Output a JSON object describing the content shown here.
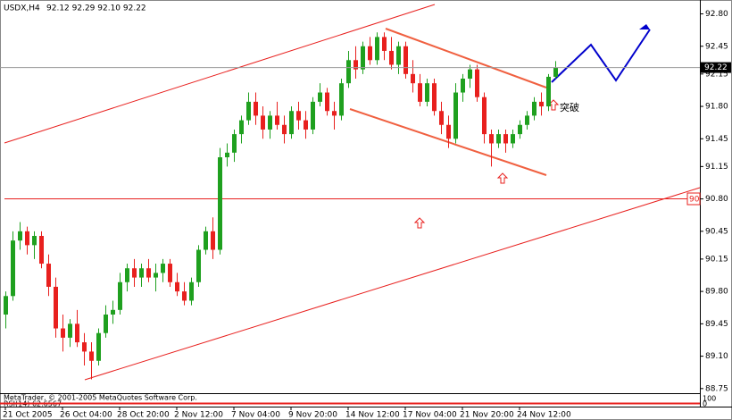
{
  "chart_data": {
    "type": "candlestick",
    "symbol": "USDX,H4",
    "ohlc_text": "92.12 92.29 92.10 92.22",
    "up_color": "#1fa01f",
    "down_color": "#e8201e",
    "ylim": [
      88.7,
      92.95
    ],
    "yticks": [
      {
        "value": 92.8,
        "label": "92.80"
      },
      92.45,
      92.15,
      {
        "value": 91.8,
        "label": "91.80"
      },
      91.45,
      91.15,
      {
        "value": 90.8,
        "label": "90.80"
      },
      90.45,
      90.15,
      {
        "value": 89.8,
        "label": "89.80"
      },
      89.45,
      {
        "value": 89.1,
        "label": "89.10"
      },
      88.75
    ],
    "categories": [
      "21 Oct 2005",
      null,
      null,
      null,
      null,
      null,
      null,
      null,
      "26 Oct 04:00",
      null,
      null,
      null,
      null,
      null,
      null,
      null,
      "28 Oct 20:00",
      null,
      null,
      null,
      null,
      null,
      null,
      null,
      "2 Nov 12:00",
      null,
      null,
      null,
      null,
      null,
      null,
      null,
      "7 Nov 04:00",
      null,
      null,
      null,
      null,
      null,
      null,
      null,
      "9 Nov 20:00",
      null,
      null,
      null,
      null,
      null,
      null,
      null,
      "14 Nov 12:00",
      null,
      null,
      null,
      null,
      null,
      null,
      null,
      "17 Nov 04:00",
      null,
      null,
      null,
      null,
      null,
      null,
      null,
      "21 Nov 20:00",
      null,
      null,
      null,
      null,
      null,
      null,
      null,
      "24 Nov 12:00",
      null,
      null,
      null,
      null,
      null
    ],
    "candles": [
      [
        89.55,
        89.8,
        89.4,
        89.75
      ],
      [
        89.75,
        90.45,
        89.7,
        90.35
      ],
      [
        90.35,
        90.55,
        90.25,
        90.45
      ],
      [
        90.45,
        90.5,
        90.2,
        90.3
      ],
      [
        90.3,
        90.45,
        90.15,
        90.4
      ],
      [
        90.4,
        90.45,
        90.05,
        90.1
      ],
      [
        90.1,
        90.2,
        89.75,
        89.85
      ],
      [
        89.85,
        89.95,
        89.3,
        89.4
      ],
      [
        89.4,
        89.55,
        89.15,
        89.3
      ],
      [
        89.3,
        89.5,
        89.2,
        89.45
      ],
      [
        89.45,
        89.6,
        89.2,
        89.25
      ],
      [
        89.25,
        89.35,
        89.0,
        89.15
      ],
      [
        89.15,
        89.25,
        88.85,
        89.05
      ],
      [
        89.05,
        89.4,
        89.0,
        89.35
      ],
      [
        89.35,
        89.65,
        89.3,
        89.55
      ],
      [
        89.55,
        89.7,
        89.45,
        89.6
      ],
      [
        89.6,
        90.0,
        89.55,
        89.9
      ],
      [
        89.9,
        90.1,
        89.8,
        90.05
      ],
      [
        90.05,
        90.15,
        89.85,
        89.95
      ],
      [
        89.95,
        90.1,
        89.85,
        90.05
      ],
      [
        90.05,
        90.15,
        89.9,
        89.95
      ],
      [
        89.95,
        90.1,
        89.8,
        90.0
      ],
      [
        90.0,
        90.15,
        89.9,
        90.1
      ],
      [
        90.1,
        90.15,
        89.85,
        89.9
      ],
      [
        89.9,
        90.0,
        89.75,
        89.8
      ],
      [
        89.8,
        89.9,
        89.65,
        89.7
      ],
      [
        89.7,
        89.95,
        89.65,
        89.9
      ],
      [
        89.9,
        90.3,
        89.85,
        90.25
      ],
      [
        90.25,
        90.5,
        90.2,
        90.45
      ],
      [
        90.45,
        90.6,
        90.15,
        90.25
      ],
      [
        90.25,
        91.35,
        90.2,
        91.25
      ],
      [
        91.25,
        91.4,
        91.15,
        91.3
      ],
      [
        91.3,
        91.55,
        91.2,
        91.5
      ],
      [
        91.5,
        91.7,
        91.4,
        91.65
      ],
      [
        91.65,
        91.95,
        91.6,
        91.85
      ],
      [
        91.85,
        91.95,
        91.6,
        91.7
      ],
      [
        91.7,
        91.8,
        91.45,
        91.55
      ],
      [
        91.55,
        91.75,
        91.45,
        91.7
      ],
      [
        91.7,
        91.85,
        91.55,
        91.6
      ],
      [
        91.6,
        91.7,
        91.4,
        91.5
      ],
      [
        91.5,
        91.8,
        91.45,
        91.75
      ],
      [
        91.75,
        91.85,
        91.55,
        91.65
      ],
      [
        91.65,
        91.75,
        91.45,
        91.55
      ],
      [
        91.55,
        91.9,
        91.5,
        91.85
      ],
      [
        91.85,
        92.05,
        91.8,
        91.95
      ],
      [
        91.95,
        92.0,
        91.7,
        91.75
      ],
      [
        91.75,
        91.85,
        91.55,
        91.7
      ],
      [
        91.7,
        92.1,
        91.65,
        92.05
      ],
      [
        92.05,
        92.4,
        92.0,
        92.3
      ],
      [
        92.3,
        92.45,
        92.1,
        92.2
      ],
      [
        92.2,
        92.5,
        92.15,
        92.45
      ],
      [
        92.45,
        92.55,
        92.25,
        92.3
      ],
      [
        92.3,
        92.6,
        92.25,
        92.55
      ],
      [
        92.55,
        92.6,
        92.3,
        92.4
      ],
      [
        92.4,
        92.55,
        92.2,
        92.25
      ],
      [
        92.25,
        92.5,
        92.15,
        92.45
      ],
      [
        92.45,
        92.5,
        92.1,
        92.15
      ],
      [
        92.15,
        92.3,
        91.95,
        92.05
      ],
      [
        92.05,
        92.15,
        91.8,
        91.85
      ],
      [
        91.85,
        92.1,
        91.8,
        92.05
      ],
      [
        92.05,
        92.1,
        91.7,
        91.75
      ],
      [
        91.75,
        91.85,
        91.5,
        91.6
      ],
      [
        91.6,
        91.7,
        91.35,
        91.45
      ],
      [
        91.45,
        92.05,
        91.4,
        91.95
      ],
      [
        91.95,
        92.15,
        91.85,
        92.1
      ],
      [
        92.1,
        92.25,
        92.0,
        92.2
      ],
      [
        92.2,
        92.25,
        91.85,
        91.9
      ],
      [
        91.9,
        91.95,
        91.4,
        91.5
      ],
      [
        91.5,
        91.55,
        91.15,
        91.4
      ],
      [
        91.4,
        91.55,
        91.35,
        91.5
      ],
      [
        91.5,
        91.55,
        91.3,
        91.4
      ],
      [
        91.4,
        91.55,
        91.35,
        91.5
      ],
      [
        91.5,
        91.65,
        91.45,
        91.6
      ],
      [
        91.6,
        91.75,
        91.55,
        91.7
      ],
      [
        91.7,
        91.9,
        91.65,
        91.85
      ],
      [
        91.85,
        91.95,
        91.7,
        91.8
      ],
      [
        91.8,
        92.15,
        91.75,
        92.12
      ],
      [
        92.12,
        92.29,
        92.1,
        92.22
      ]
    ],
    "annotation": "突破",
    "hline_label": "90",
    "rsi": {
      "label": "RSI(14) 62.6567",
      "yticks": [
        100,
        0
      ]
    },
    "copyright": "MetaTrader, © 2001-2005 MetaQuotes Software Corp."
  }
}
